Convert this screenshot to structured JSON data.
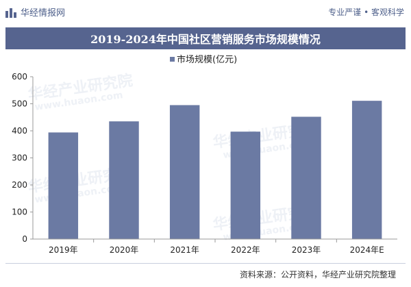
{
  "header": {
    "logo_text": "华经情报网",
    "slogan": "专业严谨 • 客观科学"
  },
  "colors": {
    "brand": "#56648f",
    "bar": "#6b7aa3"
  },
  "watermarks": {
    "brand": "华经产业研究院",
    "url": "www.huaon.com"
  },
  "chart_data": {
    "type": "bar",
    "title": "2019-2024年中国社区营销服务市场规模情况",
    "categories": [
      "2019年",
      "2020年",
      "2021年",
      "2022年",
      "2023年",
      "2024年E"
    ],
    "series": [
      {
        "name": "市场规模(亿元)",
        "values": [
          394,
          435,
          495,
          397,
          452,
          511
        ]
      }
    ],
    "ylim": [
      0,
      600
    ],
    "yticks": [
      0,
      100,
      200,
      300,
      400,
      500,
      600
    ],
    "legend": "top-center",
    "grid": false
  },
  "footer": {
    "source": "资料来源：公开资料，华经产业研究院整理"
  }
}
